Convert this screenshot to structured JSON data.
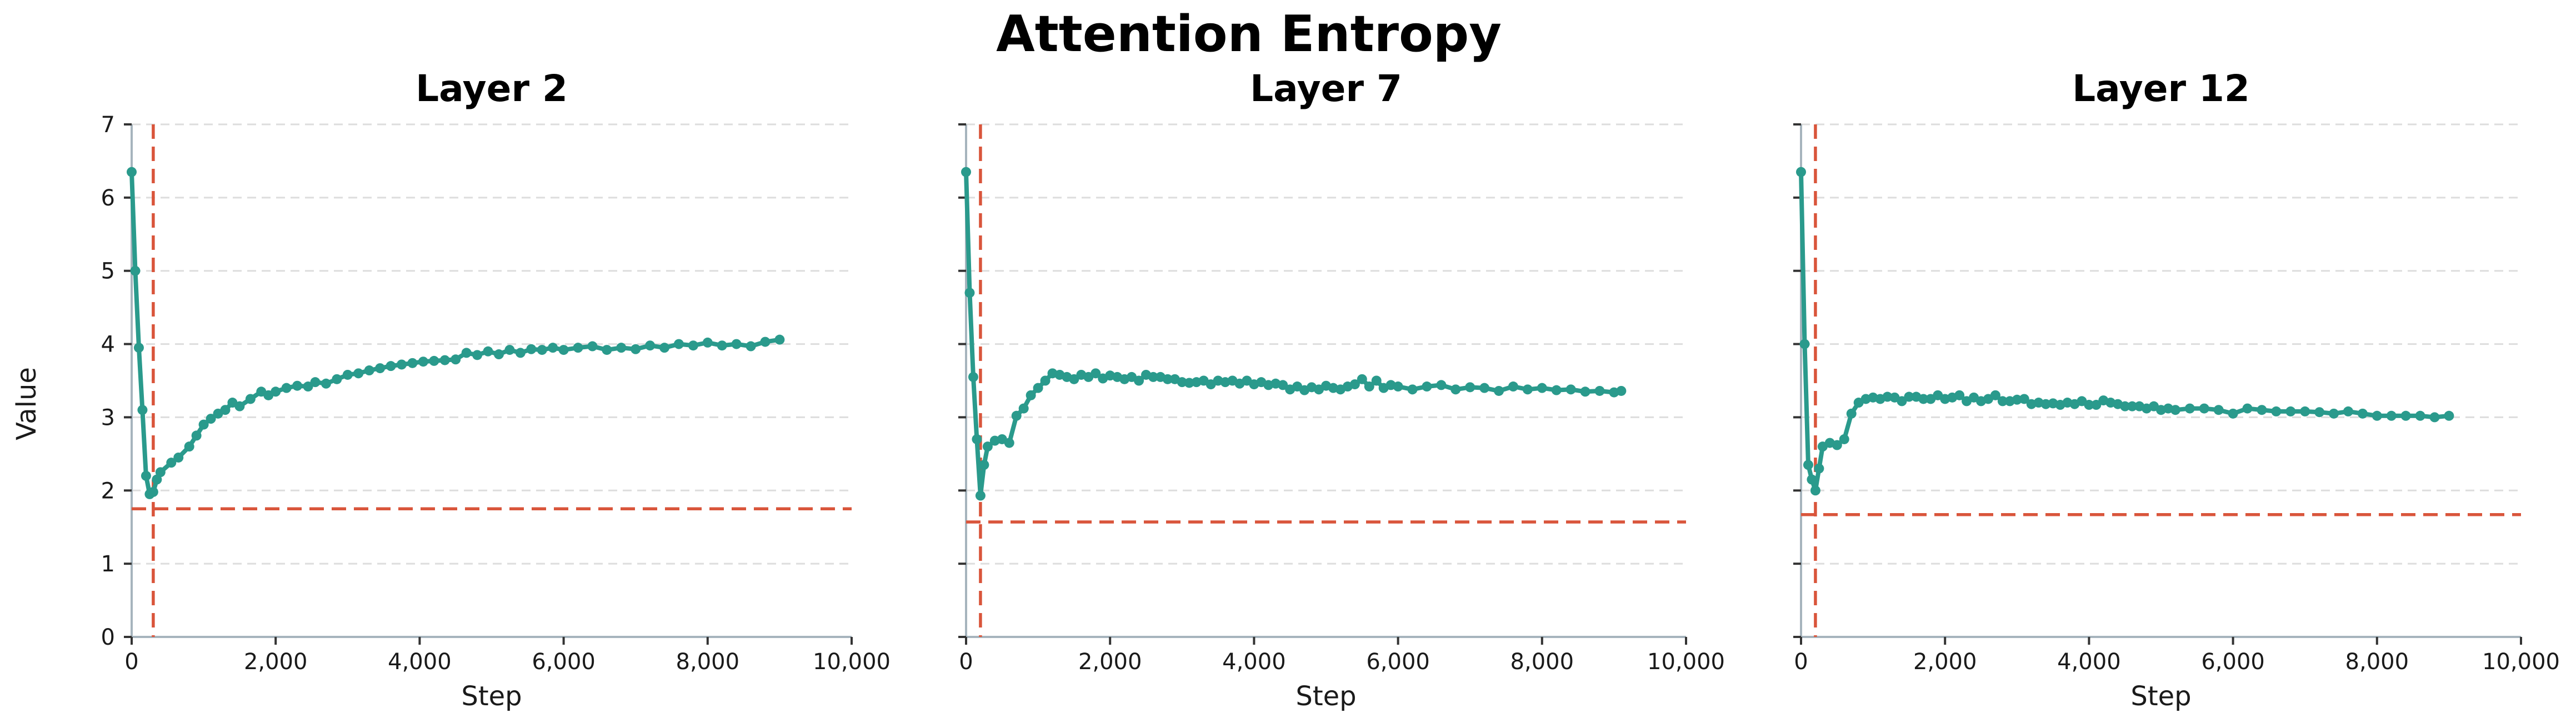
{
  "chart_data": {
    "type": "line",
    "title": "Attention Entropy",
    "ylabel": "Value",
    "xlim": [
      0,
      10000
    ],
    "ylim": [
      0,
      7
    ],
    "x_ticks": [
      0,
      2000,
      4000,
      6000,
      8000,
      10000
    ],
    "x_tick_labels": [
      "0",
      "2,000",
      "4,000",
      "6,000",
      "8,000",
      "10,000"
    ],
    "y_ticks": [
      0,
      1,
      2,
      3,
      4,
      5,
      6,
      7
    ],
    "y_tick_labels": [
      "0",
      "1",
      "2",
      "3",
      "4",
      "5",
      "6",
      "7"
    ],
    "grid": "horizontal dashed",
    "series_color": "#2a9a8c",
    "reference_color": "#d9553b",
    "panels": [
      {
        "title": "Layer 2",
        "xlabel": "Step",
        "vline_x": 300,
        "hline_y": 1.75,
        "x": [
          0,
          50,
          100,
          150,
          200,
          250,
          300,
          350,
          400,
          550,
          650,
          800,
          900,
          1000,
          1100,
          1200,
          1300,
          1400,
          1500,
          1650,
          1800,
          1900,
          2000,
          2150,
          2300,
          2450,
          2550,
          2700,
          2850,
          3000,
          3150,
          3300,
          3450,
          3600,
          3750,
          3900,
          4050,
          4200,
          4350,
          4500,
          4650,
          4800,
          4950,
          5100,
          5250,
          5400,
          5550,
          5700,
          5850,
          6000,
          6200,
          6400,
          6600,
          6800,
          7000,
          7200,
          7400,
          7600,
          7800,
          8000,
          8200,
          8400,
          8600,
          8800,
          9000
        ],
        "values": [
          6.35,
          5.0,
          3.95,
          3.1,
          2.2,
          1.95,
          1.98,
          2.15,
          2.25,
          2.38,
          2.45,
          2.6,
          2.75,
          2.9,
          2.98,
          3.05,
          3.1,
          3.2,
          3.15,
          3.25,
          3.35,
          3.3,
          3.35,
          3.4,
          3.43,
          3.42,
          3.48,
          3.46,
          3.52,
          3.58,
          3.6,
          3.64,
          3.67,
          3.7,
          3.72,
          3.74,
          3.76,
          3.77,
          3.78,
          3.79,
          3.88,
          3.85,
          3.9,
          3.86,
          3.92,
          3.88,
          3.93,
          3.92,
          3.95,
          3.92,
          3.95,
          3.97,
          3.92,
          3.95,
          3.93,
          3.98,
          3.95,
          4.0,
          3.98,
          4.02,
          3.98,
          4.0,
          3.97,
          4.03,
          4.06
        ]
      },
      {
        "title": "Layer 7",
        "xlabel": "Step",
        "vline_x": 200,
        "hline_y": 1.57,
        "x": [
          0,
          50,
          100,
          150,
          200,
          250,
          300,
          400,
          500,
          600,
          700,
          800,
          900,
          1000,
          1100,
          1200,
          1300,
          1400,
          1500,
          1600,
          1700,
          1800,
          1900,
          2000,
          2100,
          2200,
          2300,
          2400,
          2500,
          2600,
          2700,
          2800,
          2900,
          3000,
          3100,
          3200,
          3300,
          3400,
          3500,
          3600,
          3700,
          3800,
          3900,
          4000,
          4100,
          4200,
          4300,
          4400,
          4500,
          4600,
          4700,
          4800,
          4900,
          5000,
          5100,
          5200,
          5300,
          5400,
          5500,
          5600,
          5700,
          5800,
          5900,
          6000,
          6200,
          6400,
          6600,
          6800,
          7000,
          7200,
          7400,
          7600,
          7800,
          8000,
          8200,
          8400,
          8600,
          8800,
          9000,
          9100
        ],
        "values": [
          6.35,
          4.7,
          3.55,
          2.7,
          1.93,
          2.35,
          2.6,
          2.68,
          2.7,
          2.65,
          3.02,
          3.12,
          3.3,
          3.4,
          3.5,
          3.6,
          3.58,
          3.55,
          3.52,
          3.58,
          3.55,
          3.6,
          3.53,
          3.57,
          3.55,
          3.52,
          3.55,
          3.5,
          3.58,
          3.55,
          3.55,
          3.52,
          3.52,
          3.48,
          3.47,
          3.48,
          3.5,
          3.45,
          3.5,
          3.48,
          3.5,
          3.46,
          3.5,
          3.45,
          3.48,
          3.44,
          3.46,
          3.44,
          3.38,
          3.42,
          3.37,
          3.41,
          3.38,
          3.43,
          3.4,
          3.38,
          3.42,
          3.45,
          3.52,
          3.42,
          3.5,
          3.4,
          3.44,
          3.42,
          3.38,
          3.42,
          3.44,
          3.38,
          3.41,
          3.4,
          3.36,
          3.42,
          3.38,
          3.4,
          3.37,
          3.38,
          3.35,
          3.36,
          3.34,
          3.36
        ]
      },
      {
        "title": "Layer 12",
        "xlabel": "Step",
        "vline_x": 200,
        "hline_y": 1.67,
        "x": [
          0,
          50,
          100,
          150,
          200,
          250,
          300,
          400,
          500,
          600,
          700,
          800,
          900,
          1000,
          1100,
          1200,
          1300,
          1400,
          1500,
          1600,
          1700,
          1800,
          1900,
          2000,
          2100,
          2200,
          2300,
          2400,
          2500,
          2600,
          2700,
          2800,
          2900,
          3000,
          3100,
          3200,
          3300,
          3400,
          3500,
          3600,
          3700,
          3800,
          3900,
          4000,
          4100,
          4200,
          4300,
          4400,
          4500,
          4600,
          4700,
          4800,
          4900,
          5000,
          5100,
          5200,
          5400,
          5600,
          5800,
          6000,
          6200,
          6400,
          6600,
          6800,
          7000,
          7200,
          7400,
          7600,
          7800,
          8000,
          8200,
          8400,
          8600,
          8800,
          9000
        ],
        "values": [
          6.35,
          4.0,
          2.35,
          2.15,
          2.0,
          2.3,
          2.6,
          2.65,
          2.62,
          2.7,
          3.05,
          3.2,
          3.25,
          3.27,
          3.25,
          3.28,
          3.27,
          3.22,
          3.28,
          3.28,
          3.25,
          3.25,
          3.3,
          3.25,
          3.27,
          3.3,
          3.22,
          3.27,
          3.22,
          3.25,
          3.3,
          3.22,
          3.22,
          3.24,
          3.25,
          3.18,
          3.2,
          3.18,
          3.19,
          3.17,
          3.2,
          3.18,
          3.22,
          3.17,
          3.17,
          3.23,
          3.2,
          3.18,
          3.15,
          3.15,
          3.15,
          3.12,
          3.15,
          3.1,
          3.12,
          3.1,
          3.12,
          3.12,
          3.1,
          3.05,
          3.12,
          3.1,
          3.08,
          3.08,
          3.08,
          3.07,
          3.05,
          3.08,
          3.05,
          3.02,
          3.02,
          3.02,
          3.02,
          3.0,
          3.02
        ]
      }
    ]
  }
}
